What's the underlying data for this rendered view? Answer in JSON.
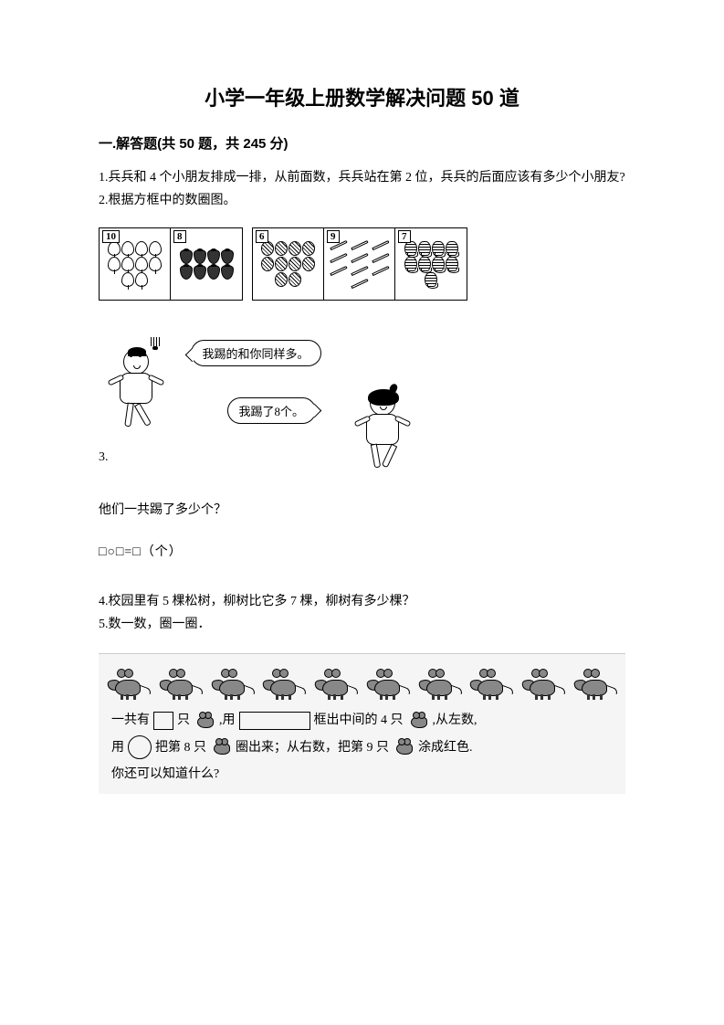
{
  "title": "小学一年级上册数学解决问题 50 道",
  "section_header": "一.解答题(共 50 题，共 245 分)",
  "questions": {
    "q1": "1.兵兵和 4 个小朋友排成一排，从前面数，兵兵站在第 2 位，兵兵的后面应该有多少个小朋友?",
    "q2": "2.根据方框中的数圈图。",
    "q3_num": "3.",
    "q3_sub": "他们一共踢了多少个？",
    "q3_eq": "□○□=□（个）",
    "q4": "4.校园里有 5 棵松树，柳树比它多 7 棵，柳树有多少棵？",
    "q5": "5.数一数，圈一圈．"
  },
  "count_boxes": {
    "box1_num": "10",
    "box1_count": 10,
    "box1_type": "balloon",
    "box2_num": "8",
    "box2_count": 8,
    "box2_type": "strawberry",
    "box3_num": "6",
    "box3_count": 10,
    "box3_type": "nut",
    "box4_num": "9",
    "box4_count": 10,
    "box4_type": "pencil",
    "box5_num": "7",
    "box5_count": 9,
    "box5_type": "corn"
  },
  "speech": {
    "bubble1": "我踢的和你同样多。",
    "bubble2": "我踢了8个。"
  },
  "mice": {
    "count": 10,
    "line1_a": "一共有",
    "line1_b": "只",
    "line1_c": ",用",
    "line1_d": "框出中间的 4 只",
    "line1_e": ",从左数,",
    "line2_a": "用",
    "line2_b": "把第 8 只",
    "line2_c": "圈出来；从右数，把第 9 只",
    "line2_d": "涂成红色.",
    "line3": "你还可以知道什么?"
  }
}
